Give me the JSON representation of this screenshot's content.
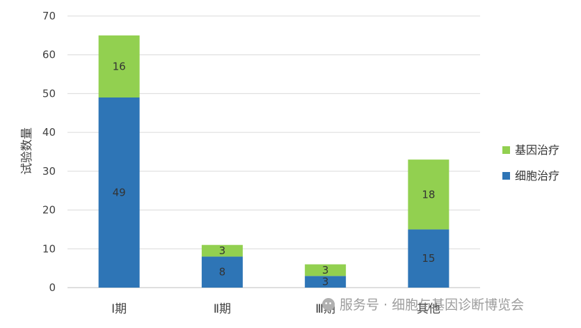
{
  "chart_data": {
    "type": "bar",
    "stacked": true,
    "title": "",
    "xlabel": "",
    "ylabel": "试验数量",
    "ylim": [
      0,
      70
    ],
    "yticks": [
      0,
      10,
      20,
      30,
      40,
      50,
      60,
      70
    ],
    "grid": true,
    "legend_position": "right",
    "categories": [
      "Ⅰ期",
      "Ⅱ期",
      "Ⅲ期",
      "其他"
    ],
    "series": [
      {
        "name": "细胞治疗",
        "values": [
          49,
          8,
          3,
          15
        ],
        "color": "#2E75B6"
      },
      {
        "name": "基因治疗",
        "values": [
          16,
          3,
          3,
          18
        ],
        "color": "#92D050"
      }
    ]
  },
  "watermark": {
    "text": "服务号 · 细胞与基因诊断博览会",
    "icon": "wechat-logo-icon"
  }
}
